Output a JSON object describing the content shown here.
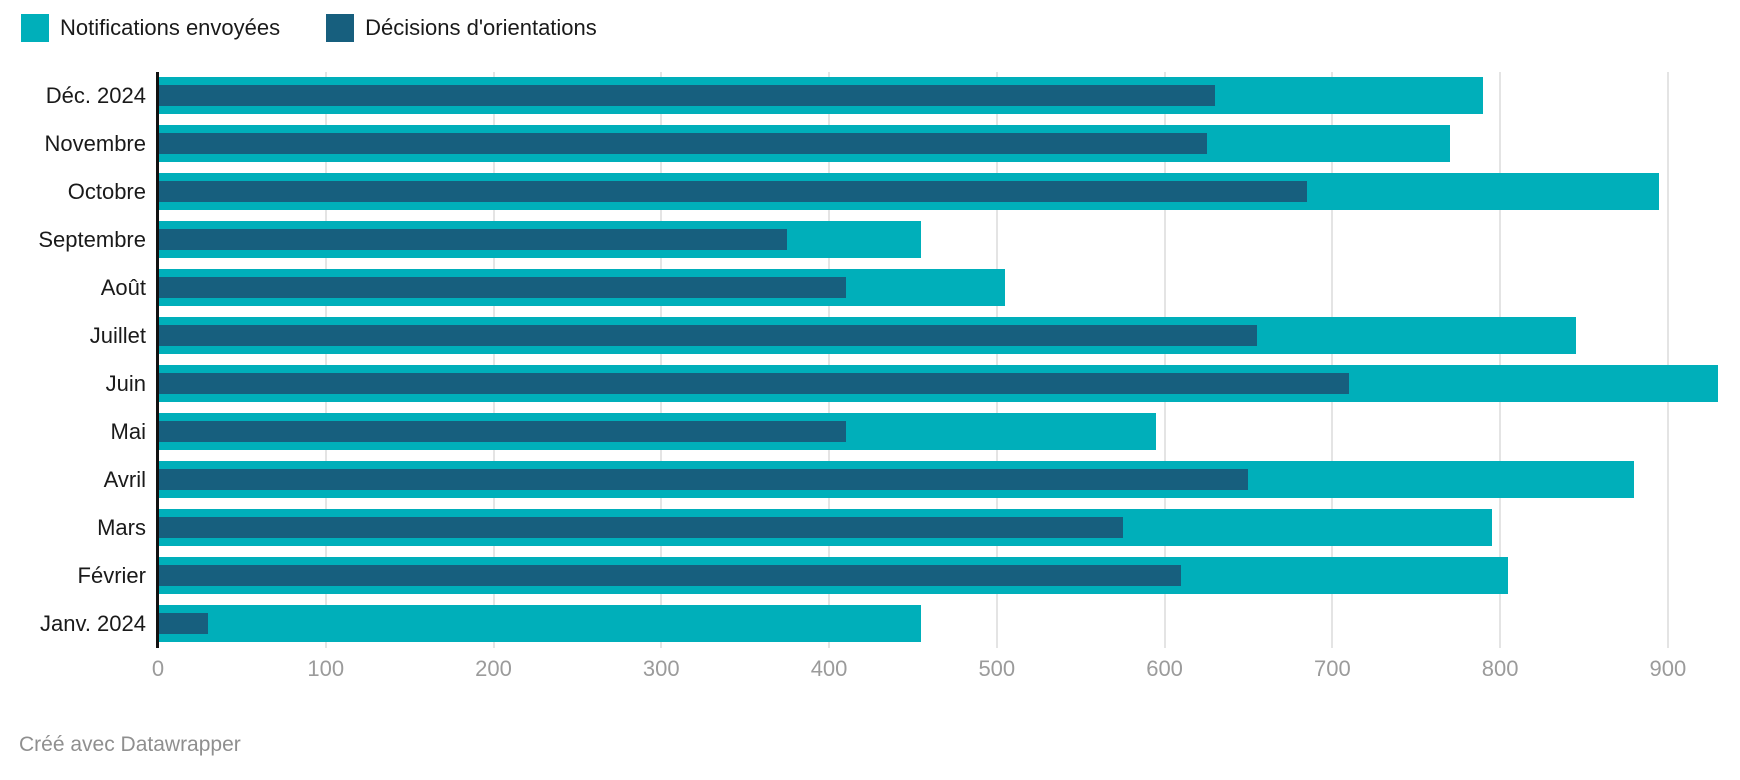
{
  "legend": {
    "items": [
      {
        "label": "Notifications envoyées",
        "color": "#00afba"
      },
      {
        "label": "Décisions d'orientations",
        "color": "#175f7e"
      }
    ]
  },
  "chart_data": {
    "type": "bar",
    "orientation": "horizontal",
    "title": "",
    "categories": [
      "Déc. 2024",
      "Novembre",
      "Octobre",
      "Septembre",
      "Août",
      "Juillet",
      "Juin",
      "Mai",
      "Avril",
      "Mars",
      "Février",
      "Janv. 2024"
    ],
    "series": [
      {
        "name": "Notifications envoyées",
        "color": "#00afba",
        "values": [
          790,
          770,
          895,
          455,
          505,
          845,
          930,
          595,
          880,
          795,
          805,
          455
        ]
      },
      {
        "name": "Décisions d'orientations",
        "color": "#175f7e",
        "values": [
          630,
          625,
          685,
          375,
          410,
          655,
          710,
          410,
          650,
          575,
          610,
          30
        ]
      }
    ],
    "xlim": [
      0,
      943
    ],
    "xticks": [
      0,
      100,
      200,
      300,
      400,
      500,
      600,
      700,
      800,
      900
    ],
    "grid": "vertical-light-gray",
    "legend_position": "top-left",
    "colors": {
      "axis_line": "#111111",
      "gridline": "#e4e4e4",
      "tick_label": "#9b9b9b",
      "category_label": "#1a1a1a"
    }
  },
  "footer": {
    "attribution": "Créé avec Datawrapper"
  }
}
